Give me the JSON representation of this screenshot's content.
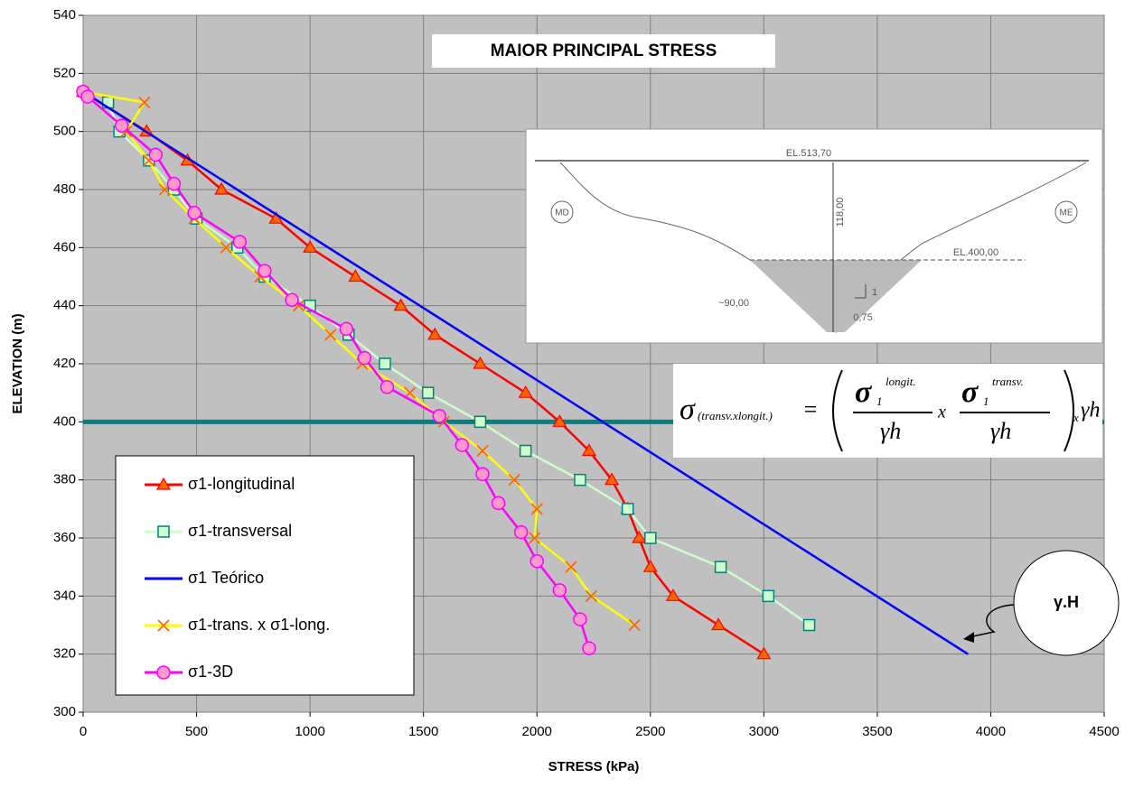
{
  "chart_data": {
    "type": "line",
    "title": "MAIOR PRINCIPAL STRESS",
    "x_label": "STRESS (kPa)",
    "y_label": "ELEVATION (m)",
    "xlim": [
      0,
      4500
    ],
    "xticks": [
      0,
      500,
      1000,
      1500,
      2000,
      2500,
      3000,
      3500,
      4000,
      4500
    ],
    "ylim": [
      300,
      540
    ],
    "yticks": [
      300,
      320,
      340,
      360,
      380,
      400,
      420,
      440,
      460,
      480,
      500,
      520,
      540
    ],
    "grid": true,
    "legend": "lower left",
    "hline": {
      "value": 400,
      "color": "#008080"
    },
    "series": [
      {
        "name": "σ1-longitudinal",
        "color": "#ff0000",
        "marker": "triangle",
        "marker_color": "#ff6600",
        "x": [
          0,
          280,
          460,
          610,
          850,
          1000,
          1200,
          1400,
          1550,
          1750,
          1950,
          2100,
          2230,
          2330,
          2400,
          2450,
          2500,
          2600,
          2800,
          3000
        ],
        "values": [
          513.7,
          500,
          490,
          480,
          470,
          460,
          450,
          440,
          430,
          420,
          410,
          400,
          390,
          380,
          370,
          360,
          350,
          340,
          330,
          320
        ]
      },
      {
        "name": "σ1-transversal",
        "color": "#ccffcc",
        "marker": "square",
        "marker_color": "#ccffcc",
        "marker_stroke": "#008080",
        "x": [
          110,
          160,
          290,
          400,
          500,
          680,
          800,
          1000,
          1170,
          1330,
          1520,
          1750,
          1950,
          2190,
          2400,
          2500,
          2810,
          3020,
          3200
        ],
        "values": [
          510,
          500,
          490,
          480,
          470,
          460,
          450,
          440,
          430,
          420,
          410,
          400,
          390,
          380,
          370,
          360,
          350,
          340,
          330
        ]
      },
      {
        "name": "σ1 Teórico",
        "color": "#0000ff",
        "marker": "none",
        "x": [
          0,
          3900
        ],
        "values": [
          513.7,
          320
        ]
      },
      {
        "name": "σ1-trans. x σ1-long.",
        "color": "#ffff00",
        "marker": "x",
        "marker_color": "#ff6600",
        "x": [
          0,
          270,
          190,
          290,
          360,
          490,
          630,
          780,
          950,
          1090,
          1230,
          1440,
          1590,
          1760,
          1900,
          2000,
          1990,
          2150,
          2240,
          2430
        ],
        "values": [
          513.7,
          510,
          500,
          490,
          480,
          470,
          460,
          450,
          440,
          430,
          420,
          410,
          400,
          390,
          380,
          370,
          360,
          350,
          340,
          330
        ]
      },
      {
        "name": "σ1-3D",
        "color": "#ff00ff",
        "marker": "circle",
        "marker_color": "#ff99cc",
        "x": [
          0,
          20,
          170,
          320,
          400,
          490,
          690,
          800,
          920,
          1160,
          1240,
          1340,
          1570,
          1670,
          1760,
          1830,
          1930,
          2000,
          2100,
          2190,
          2230
        ],
        "values": [
          513.7,
          512,
          502,
          492,
          482,
          472,
          462,
          452,
          442,
          432,
          422,
          412,
          402,
          392,
          382,
          372,
          362,
          352,
          342,
          332,
          322
        ]
      }
    ],
    "annotation": "γ.H",
    "inset": {
      "el_top": "EL.513,70",
      "height": "118,00",
      "left_bank": "MD",
      "right_bank": "ME",
      "el_bottom": "EL.400,00",
      "width": "~90,00",
      "slope_v": "1",
      "slope_h": "0,75"
    },
    "formula": {
      "sigma": "σ",
      "sub": "(transv.xlongit.)",
      "eq": "=",
      "s1a": "σ",
      "one_a": "1",
      "sup_a": "longit.",
      "den_a": "γh",
      "times": "x",
      "s1b": "σ",
      "one_b": "1",
      "sup_b": "transv.",
      "den_b": "γh",
      "post": "x",
      "gh": "γh"
    }
  }
}
